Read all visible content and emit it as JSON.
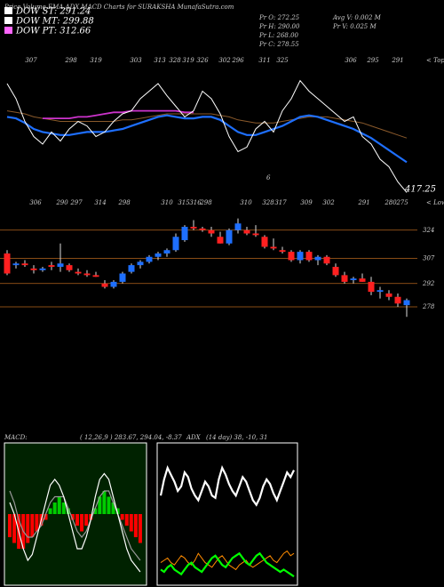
{
  "header": {
    "title": "Price,Volume,EMA,ADX,MACD Charts for SURAKSHA MunafaSutra.com",
    "legend": [
      {
        "label": "DOW ST: 291.24",
        "color": "#ffffff"
      },
      {
        "label": "DOW MT: 299.88",
        "color": "#ffffff"
      },
      {
        "label": "DOW PT: 312.66",
        "color": "#ff66ff"
      }
    ],
    "ohlc": [
      "Pr  O: 272.25",
      "Pr  H: 290.00",
      "Pr  L: 268.00",
      "Pr  C: 278.55"
    ],
    "avg": [
      "Avg V: 0.002  M",
      "Pr  V: 0.025  M"
    ]
  },
  "chart_data": [
    {
      "type": "line",
      "tops": [
        307,
        298,
        319,
        303,
        313,
        328,
        319,
        326,
        302,
        296,
        311,
        325,
        306,
        295,
        291
      ],
      "tops_label": "< Tops",
      "lows": [
        306,
        290,
        297,
        314,
        298,
        310,
        315,
        316,
        298,
        310,
        328,
        317,
        309,
        302,
        291,
        280,
        275
      ],
      "lows_label": "< Lows",
      "annotations": [
        "417.25",
        "6"
      ],
      "ylim": [
        0,
        100
      ],
      "series": [
        {
          "color": "#8b5a2b",
          "values": [
            62,
            61,
            60,
            58,
            57,
            56,
            55,
            55,
            55,
            55,
            55,
            55,
            55,
            56,
            56,
            57,
            58,
            59,
            60,
            60,
            60,
            60,
            60,
            60,
            59,
            58,
            56,
            55,
            54,
            54,
            54,
            55,
            56,
            57,
            58,
            58,
            58,
            57,
            56,
            55,
            54,
            52,
            50,
            48,
            46,
            44
          ]
        },
        {
          "color": "#cc33cc",
          "values": [
            null,
            null,
            null,
            null,
            57,
            57,
            57,
            57,
            58,
            58,
            59,
            60,
            61,
            61,
            62,
            62,
            62,
            62,
            62,
            62,
            61,
            61,
            null,
            null,
            null,
            null,
            null,
            null,
            null,
            null,
            null,
            null,
            null,
            null,
            null,
            null,
            null,
            null,
            null,
            null,
            null,
            null,
            null,
            null,
            null,
            null
          ]
        },
        {
          "color": "#1e6fff",
          "values": [
            58,
            57,
            54,
            50,
            48,
            47,
            46,
            46,
            47,
            48,
            48,
            48,
            49,
            50,
            52,
            54,
            56,
            58,
            59,
            58,
            57,
            57,
            58,
            58,
            56,
            52,
            48,
            46,
            46,
            48,
            50,
            52,
            55,
            58,
            59,
            58,
            56,
            54,
            52,
            50,
            47,
            44,
            40,
            36,
            32,
            28
          ]
        },
        {
          "color": "#ffffff",
          "values": [
            80,
            70,
            55,
            45,
            40,
            48,
            42,
            50,
            55,
            52,
            45,
            48,
            55,
            60,
            62,
            70,
            75,
            80,
            72,
            65,
            58,
            62,
            75,
            70,
            60,
            45,
            35,
            38,
            50,
            55,
            48,
            62,
            70,
            82,
            75,
            70,
            65,
            60,
            55,
            58,
            45,
            40,
            30,
            25,
            15,
            8
          ]
        }
      ]
    },
    {
      "type": "candlestick",
      "ylim": [
        262,
        334
      ],
      "yticks": [
        324,
        307,
        292,
        278
      ],
      "up_color": "#1e6fff",
      "down_color": "#ff2020",
      "open": [
        310,
        303,
        304,
        301,
        300,
        303,
        302,
        303,
        299,
        298,
        297,
        292,
        290,
        293,
        299,
        303,
        305,
        308,
        310,
        312,
        318,
        326,
        325,
        324,
        320,
        316,
        324,
        324,
        322,
        320,
        314,
        312,
        311,
        306,
        311,
        306,
        308,
        302,
        297,
        294,
        295,
        293,
        287,
        286,
        284,
        279
      ],
      "high": [
        312,
        305,
        306,
        303,
        302,
        305,
        316,
        304,
        301,
        300,
        299,
        294,
        294,
        299,
        304,
        306,
        309,
        311,
        313,
        322,
        327,
        330,
        326,
        326,
        323,
        325,
        331,
        326,
        327,
        321,
        319,
        314,
        312,
        312,
        312,
        309,
        309,
        304,
        299,
        296,
        298,
        296,
        290,
        288,
        286,
        283
      ],
      "low": [
        297,
        301,
        302,
        298,
        299,
        300,
        299,
        299,
        297,
        296,
        296,
        289,
        289,
        292,
        298,
        301,
        304,
        306,
        308,
        311,
        317,
        324,
        323,
        320,
        316,
        315,
        322,
        321,
        320,
        313,
        312,
        310,
        305,
        304,
        305,
        303,
        303,
        296,
        292,
        292,
        293,
        285,
        283,
        282,
        278,
        272
      ],
      "close": [
        298,
        304,
        303,
        300,
        301,
        302,
        304,
        300,
        298,
        297,
        296,
        290,
        293,
        298,
        303,
        305,
        308,
        310,
        312,
        320,
        326,
        325,
        324,
        322,
        316,
        324,
        328,
        322,
        321,
        314,
        313,
        311,
        306,
        311,
        306,
        308,
        304,
        297,
        293,
        295,
        293,
        287,
        288,
        284,
        280,
        282
      ]
    },
    {
      "type": "macd",
      "title": "MACD:",
      "params": "( 12,26,9 ) 283.67, 294.04, -8.37",
      "ylim": [
        -12,
        12
      ],
      "up_color": "#00cc00",
      "down_color": "#ff0000",
      "histogram": [
        -4,
        -5,
        -6,
        -6,
        -5,
        -4,
        -3,
        -2,
        -1,
        1,
        2,
        3,
        2,
        1,
        -1,
        -2,
        -3,
        -2,
        -1,
        1,
        3,
        4,
        3,
        2,
        1,
        -1,
        -2,
        -3,
        -4,
        -5
      ],
      "series": [
        {
          "color": "#999999",
          "values": [
            4,
            2,
            -1,
            -3,
            -4,
            -4,
            -3,
            -2,
            0,
            2,
            3,
            3,
            3,
            1,
            -1,
            -3,
            -4,
            -3,
            -1,
            1,
            3,
            4,
            4,
            2,
            0,
            -2,
            -4,
            -6,
            -7,
            -8
          ]
        },
        {
          "color": "#ffffff",
          "values": [
            2,
            0,
            -3,
            -6,
            -8,
            -7,
            -4,
            -1,
            2,
            5,
            6,
            5,
            3,
            0,
            -3,
            -6,
            -6,
            -4,
            -1,
            3,
            6,
            7,
            6,
            3,
            0,
            -3,
            -6,
            -8,
            -9,
            -10
          ]
        }
      ]
    },
    {
      "type": "line",
      "title": "ADX",
      "params": "(14 day) 38, -10, 31",
      "ylim": [
        0,
        60
      ],
      "series": [
        {
          "color": "#ffffff",
          "values": [
            38,
            45,
            50,
            47,
            44,
            40,
            42,
            48,
            46,
            41,
            38,
            36,
            40,
            44,
            42,
            38,
            37,
            45,
            50,
            47,
            43,
            40,
            38,
            42,
            46,
            44,
            40,
            36,
            34,
            37,
            42,
            45,
            43,
            39,
            36,
            40,
            44,
            48,
            46,
            49
          ]
        },
        {
          "color": "#ff8c00",
          "values": [
            9,
            10,
            11,
            9,
            8,
            10,
            12,
            11,
            9,
            8,
            10,
            13,
            11,
            9,
            8,
            7,
            9,
            11,
            12,
            10,
            8,
            7,
            6,
            8,
            9,
            10,
            8,
            7,
            8,
            9,
            10,
            11,
            12,
            10,
            9,
            11,
            13,
            14,
            12,
            13
          ]
        },
        {
          "color": "#00ff00",
          "values": [
            6,
            5,
            7,
            8,
            6,
            5,
            4,
            6,
            8,
            9,
            7,
            6,
            5,
            7,
            9,
            11,
            12,
            10,
            8,
            7,
            9,
            11,
            12,
            13,
            11,
            9,
            8,
            10,
            12,
            13,
            11,
            9,
            8,
            7,
            6,
            5,
            6,
            5,
            4,
            3
          ]
        }
      ]
    }
  ]
}
